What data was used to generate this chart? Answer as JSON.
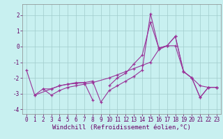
{
  "title": "",
  "xlabel": "Windchill (Refroidissement éolien,°C)",
  "xlim": [
    -0.5,
    23.5
  ],
  "ylim": [
    -4.3,
    2.7
  ],
  "background_color": "#c8f0f0",
  "grid_color": "#a0cccc",
  "line_color": "#993399",
  "lines": [
    {
      "x": [
        0,
        1,
        3,
        4,
        5,
        6,
        7,
        8
      ],
      "y": [
        -1.5,
        -3.1,
        -2.7,
        -2.5,
        -2.4,
        -2.3,
        -2.3,
        -3.4
      ]
    },
    {
      "x": [
        2,
        3,
        4,
        5,
        6,
        7,
        8,
        10,
        11,
        12,
        13,
        14,
        15,
        16,
        17,
        18,
        19,
        20,
        21,
        22,
        23
      ],
      "y": [
        -2.7,
        -3.1,
        -2.8,
        -2.6,
        -2.5,
        -2.4,
        -2.3,
        -2.0,
        -1.8,
        -1.6,
        -1.4,
        -1.2,
        -1.0,
        -0.2,
        0.05,
        0.05,
        -1.6,
        -2.0,
        -2.5,
        -2.6,
        -2.6
      ]
    },
    {
      "x": [
        1,
        2,
        3,
        4,
        5,
        6,
        7,
        8,
        9,
        10,
        11,
        12,
        13,
        14,
        15,
        16,
        17,
        18,
        19,
        20,
        21,
        22,
        23
      ],
      "y": [
        -3.1,
        -2.7,
        -2.7,
        -2.5,
        -2.4,
        -2.35,
        -2.3,
        -2.2,
        -3.55,
        -2.8,
        -2.5,
        -2.2,
        -1.9,
        -1.5,
        2.1,
        -0.1,
        0.05,
        0.65,
        -1.6,
        -2.0,
        -3.25,
        -2.6,
        -2.6
      ]
    },
    {
      "x": [
        10,
        11,
        12,
        13,
        14,
        15,
        16,
        17,
        18,
        19,
        20,
        21,
        22,
        23
      ],
      "y": [
        -2.5,
        -2.0,
        -1.7,
        -1.1,
        -0.55,
        1.55,
        -0.1,
        0.05,
        0.65,
        -1.6,
        -2.0,
        -3.25,
        -2.6,
        -2.6
      ]
    }
  ],
  "xticks": [
    0,
    1,
    2,
    3,
    4,
    5,
    6,
    7,
    8,
    9,
    10,
    11,
    12,
    13,
    14,
    15,
    16,
    17,
    18,
    19,
    20,
    21,
    22,
    23
  ],
  "yticks": [
    -4,
    -3,
    -2,
    -1,
    0,
    1,
    2
  ],
  "tick_fontsize": 5.5,
  "xlabel_fontsize": 6.5
}
